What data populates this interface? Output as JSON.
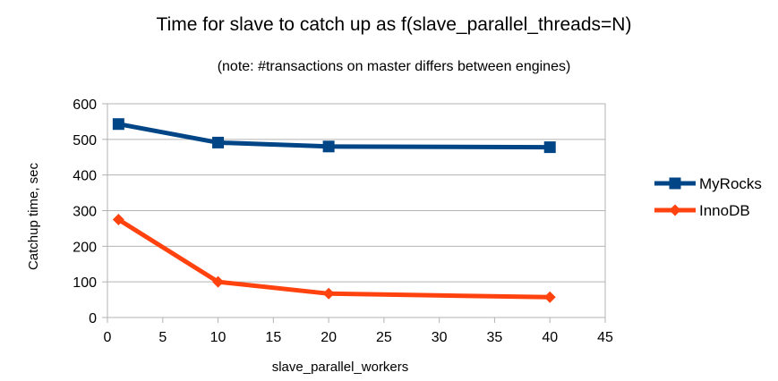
{
  "chart_data": {
    "type": "line",
    "title": "Time for slave to catch up as f(slave_parallel_threads=N)",
    "subtitle": "(note: #transactions on master differs between engines)",
    "xlabel": "slave_parallel_workers",
    "ylabel": "Catchup time, sec",
    "xlim": [
      0,
      45
    ],
    "ylim": [
      0,
      600
    ],
    "xticks": [
      0,
      5,
      10,
      15,
      20,
      25,
      30,
      35,
      40,
      45
    ],
    "yticks": [
      0,
      100,
      200,
      300,
      400,
      500,
      600
    ],
    "grid": true,
    "legend_position": "right",
    "series": [
      {
        "name": "MyRocks",
        "color": "#004586",
        "marker": "square",
        "points": [
          {
            "x": 1,
            "y": 543
          },
          {
            "x": 10,
            "y": 491
          },
          {
            "x": 20,
            "y": 480
          },
          {
            "x": 40,
            "y": 478
          }
        ]
      },
      {
        "name": "InnoDB",
        "color": "#ff420e",
        "marker": "diamond",
        "points": [
          {
            "x": 1,
            "y": 275
          },
          {
            "x": 10,
            "y": 100
          },
          {
            "x": 20,
            "y": 67
          },
          {
            "x": 40,
            "y": 57
          }
        ]
      }
    ]
  }
}
